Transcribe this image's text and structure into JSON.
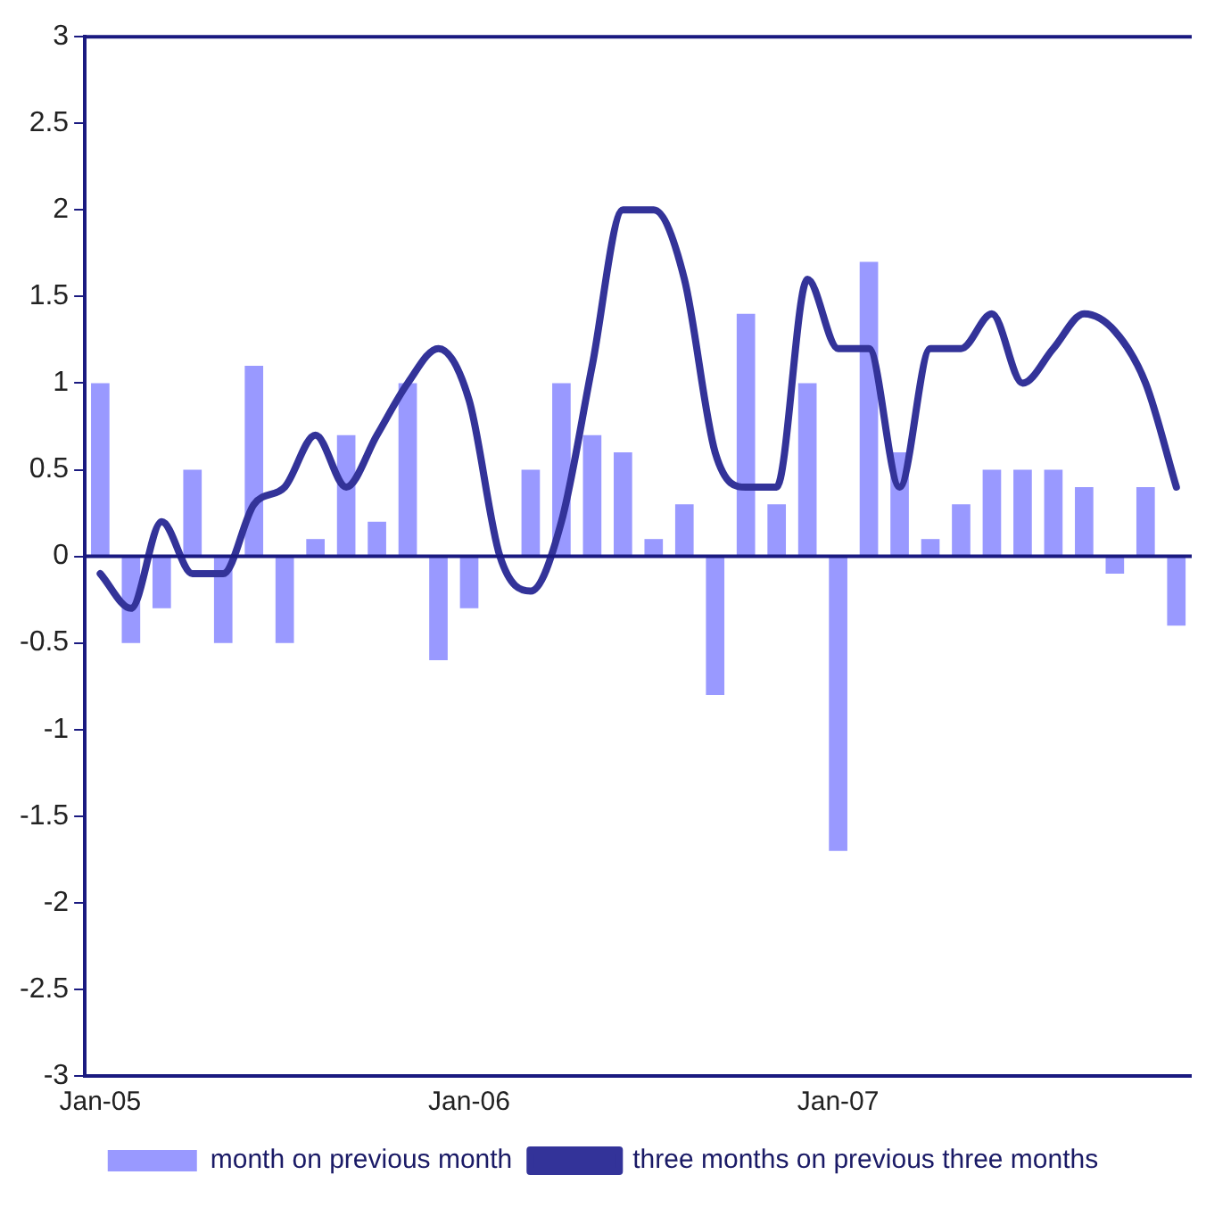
{
  "chart_data": {
    "type": "bar",
    "categories": [
      "Jan-05",
      null,
      null,
      null,
      null,
      null,
      null,
      null,
      null,
      null,
      null,
      null,
      "Jan-06",
      null,
      null,
      null,
      null,
      null,
      null,
      null,
      null,
      null,
      null,
      null,
      "Jan-07",
      null,
      null,
      null,
      null,
      null,
      null,
      null,
      null,
      null,
      null,
      null
    ],
    "series": [
      {
        "name": "month on previous month",
        "color": "#9999ff",
        "values": [
          1.0,
          -0.5,
          -0.3,
          0.5,
          -0.5,
          1.1,
          -0.5,
          0.1,
          0.7,
          0.2,
          1.0,
          -0.6,
          -0.3,
          0,
          0.5,
          1.0,
          0.7,
          0.6,
          0.1,
          0.3,
          -0.8,
          1.4,
          0.3,
          1.0,
          -1.7,
          1.7,
          0.6,
          0.1,
          0.3,
          0.5,
          0.5,
          0.5,
          0.4,
          -0.1,
          0.4,
          -0.4
        ]
      },
      {
        "name": "three months on previous three months",
        "type": "line",
        "color": "#333399",
        "values": [
          -0.1,
          -0.3,
          0.2,
          -0.1,
          -0.1,
          0.3,
          0.4,
          0.7,
          0.4,
          0.7,
          1.0,
          1.2,
          0.9,
          0.0,
          -0.2,
          0.2,
          1.1,
          2.0,
          2.0,
          1.6,
          0.6,
          0.4,
          0.4,
          1.6,
          1.2,
          1.2,
          0.4,
          1.2,
          1.2,
          1.4,
          1.0,
          1.2,
          1.4,
          1.3,
          1.0,
          0.4
        ]
      }
    ],
    "ylim": [
      -3,
      3
    ],
    "yticks": [
      -3,
      -2.5,
      -2,
      -1.5,
      -1,
      -0.5,
      0,
      0.5,
      1,
      1.5,
      2,
      2.5,
      3
    ],
    "ref_lines": [
      {
        "axis": "y",
        "value": 0,
        "color": "#1a1a80"
      }
    ],
    "grid": false,
    "legend": "bottom",
    "marker": "none",
    "line_style": "solid"
  }
}
